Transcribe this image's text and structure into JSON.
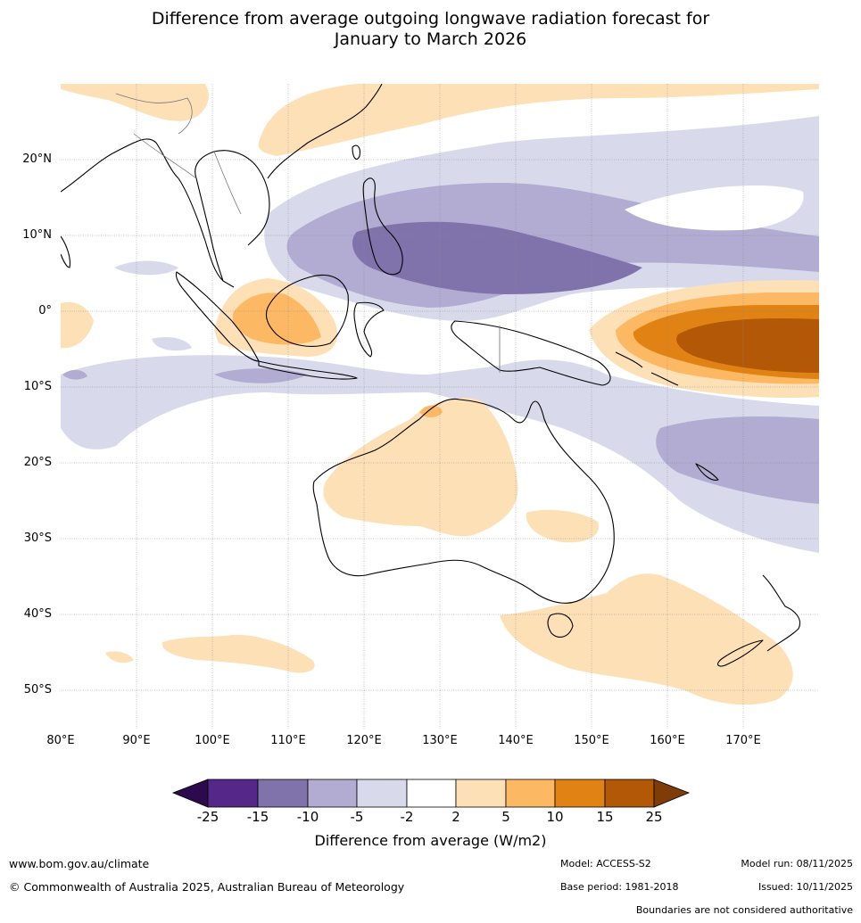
{
  "title": {
    "line1": "Difference from average outgoing longwave radiation forecast for",
    "line2": "January to March 2026"
  },
  "map": {
    "lat_labels": [
      "20°N",
      "10°N",
      "0°",
      "10°S",
      "20°S",
      "30°S",
      "40°S",
      "50°S"
    ],
    "lon_labels": [
      "80°E",
      "90°E",
      "100°E",
      "110°E",
      "120°E",
      "130°E",
      "140°E",
      "150°E",
      "160°E",
      "170°E"
    ]
  },
  "colorbar": {
    "ticks": [
      "-25",
      "-15",
      "-10",
      "-5",
      "-2",
      "2",
      "5",
      "10",
      "15",
      "25"
    ],
    "colors": [
      "#2d0a4e",
      "#542788",
      "#8073ac",
      "#b2abd2",
      "#d8daeb",
      "#ffffff",
      "#fee0b6",
      "#fdb863",
      "#e08214",
      "#b35806",
      "#7f3b08"
    ],
    "label": "Difference from average (W/m2)"
  },
  "footer": {
    "website": "www.bom.gov.au/climate",
    "copyright": "© Commonwealth of Australia 2025, Australian Bureau of Meteorology",
    "model": "Model: ACCESS-S2",
    "base_period": "Base period: 1981-2018",
    "model_run": "Model run: 08/11/2025",
    "issued": "Issued: 10/11/2025",
    "disclaimer": "Boundaries are not considered authoritative"
  }
}
